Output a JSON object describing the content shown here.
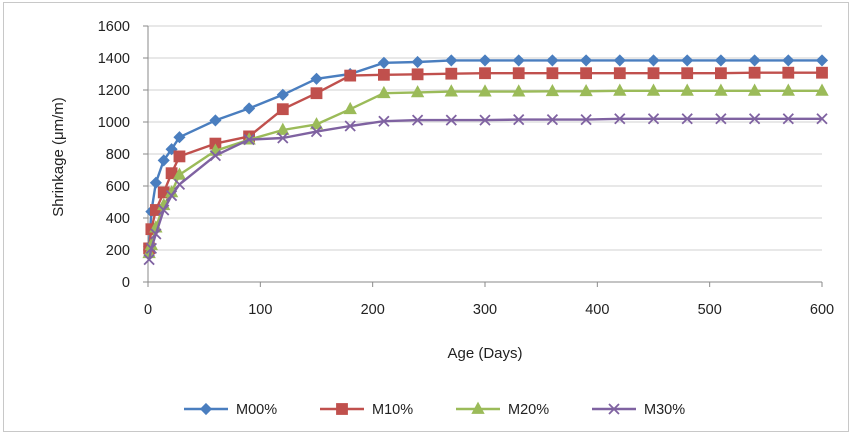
{
  "chart_data": {
    "type": "line",
    "title": "",
    "xlabel": "Age  (Days)",
    "ylabel": "Shrinkage    (μm/m)",
    "xlim": [
      0,
      600
    ],
    "ylim": [
      0,
      1600
    ],
    "xticks": [
      0,
      100,
      200,
      300,
      400,
      500,
      600
    ],
    "yticks": [
      0,
      200,
      400,
      600,
      800,
      1000,
      1200,
      1400,
      1600
    ],
    "grid": "horizontal",
    "legend_position": "bottom",
    "series": [
      {
        "name": "M00%",
        "color": "#4a7ebf",
        "marker": "diamond",
        "x": [
          1,
          3,
          7,
          14,
          21,
          28,
          60,
          90,
          120,
          150,
          180,
          210,
          240,
          270,
          300,
          330,
          360,
          390,
          420,
          450,
          480,
          510,
          540,
          570,
          600
        ],
        "values": [
          220,
          440,
          620,
          760,
          830,
          905,
          1010,
          1085,
          1170,
          1270,
          1300,
          1370,
          1375,
          1385,
          1385,
          1385,
          1385,
          1385,
          1385,
          1385,
          1385,
          1385,
          1385,
          1385,
          1385
        ]
      },
      {
        "name": "M10%",
        "color": "#c0504d",
        "marker": "square",
        "x": [
          1,
          3,
          7,
          14,
          21,
          28,
          60,
          90,
          120,
          150,
          180,
          210,
          240,
          270,
          300,
          330,
          360,
          390,
          420,
          450,
          480,
          510,
          540,
          570,
          600
        ],
        "values": [
          210,
          330,
          450,
          560,
          680,
          785,
          865,
          910,
          1080,
          1180,
          1290,
          1295,
          1298,
          1302,
          1305,
          1305,
          1305,
          1305,
          1305,
          1305,
          1305,
          1305,
          1308,
          1308,
          1308
        ]
      },
      {
        "name": "M20%",
        "color": "#9bbb59",
        "marker": "triangle",
        "x": [
          1,
          3,
          7,
          14,
          21,
          28,
          60,
          90,
          120,
          150,
          180,
          210,
          240,
          270,
          300,
          330,
          360,
          390,
          420,
          450,
          480,
          510,
          540,
          570,
          600
        ],
        "values": [
          180,
          230,
          340,
          480,
          560,
          670,
          820,
          890,
          950,
          985,
          1080,
          1180,
          1185,
          1190,
          1190,
          1190,
          1192,
          1192,
          1195,
          1195,
          1195,
          1195,
          1195,
          1195,
          1195
        ]
      },
      {
        "name": "M30%",
        "color": "#7f62a1",
        "marker": "x",
        "x": [
          1,
          3,
          7,
          14,
          21,
          28,
          60,
          90,
          120,
          150,
          180,
          210,
          240,
          270,
          300,
          330,
          360,
          390,
          420,
          450,
          480,
          510,
          540,
          570,
          600
        ],
        "values": [
          140,
          210,
          300,
          450,
          540,
          610,
          790,
          890,
          900,
          940,
          975,
          1005,
          1012,
          1012,
          1012,
          1015,
          1015,
          1015,
          1020,
          1020,
          1020,
          1020,
          1020,
          1020,
          1020
        ]
      }
    ]
  }
}
